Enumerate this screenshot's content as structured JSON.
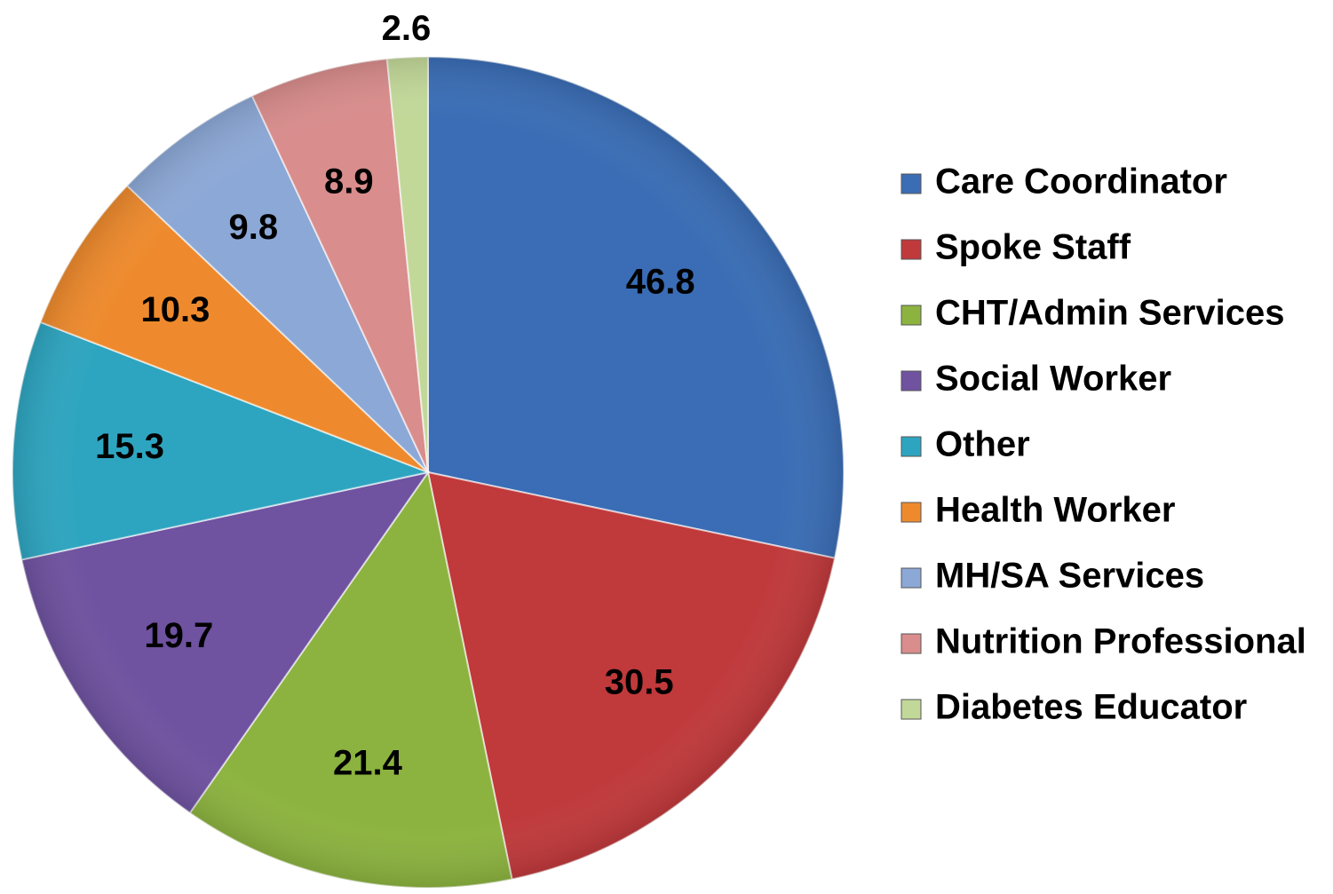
{
  "chart_data": {
    "type": "pie",
    "categories": [
      "Care Coordinator",
      "Spoke Staff",
      "CHT/Admin Services",
      "Social Worker",
      "Other",
      "Health Worker",
      "MH/SA Services",
      "Nutrition Professional",
      "Diabetes Educator"
    ],
    "values": [
      46.8,
      30.5,
      21.4,
      19.7,
      15.3,
      10.3,
      9.8,
      8.9,
      2.6
    ],
    "colors": [
      "#3a6db5",
      "#c0393b",
      "#8cb33f",
      "#6f52a0",
      "#2ea5c0",
      "#ee8a2d",
      "#8ca8d6",
      "#d98d8c",
      "#c2d899"
    ],
    "legend": "right"
  }
}
